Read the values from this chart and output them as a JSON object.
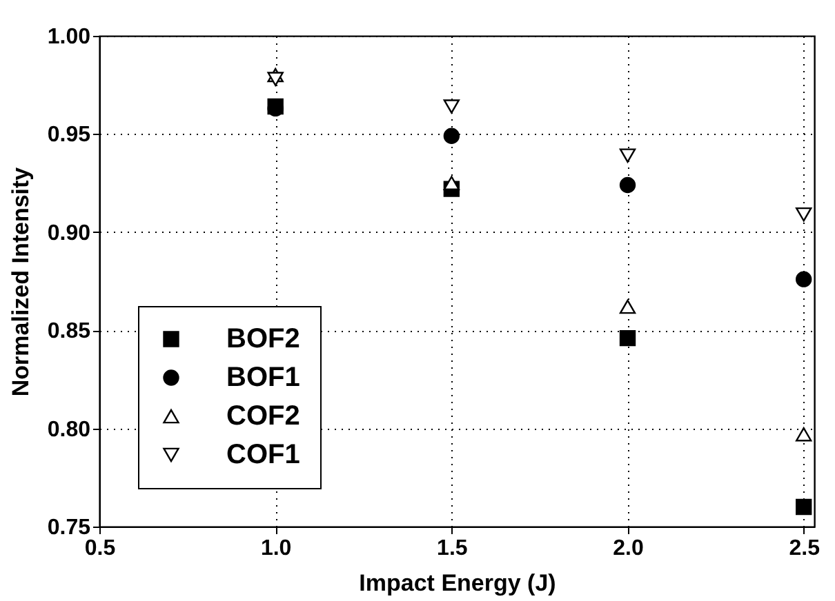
{
  "chart_data": {
    "type": "scatter",
    "xlabel": "Impact Energy (J)",
    "ylabel": "Normalized Intensity",
    "x": [
      1.0,
      1.5,
      2.0,
      2.5
    ],
    "series": [
      {
        "name": "BOF2",
        "color": "#000000",
        "marker": "square",
        "values": [
          0.964,
          0.922,
          0.846,
          0.76
        ]
      },
      {
        "name": "BOF1",
        "color": "#000000",
        "marker": "circle",
        "values": [
          0.963,
          0.949,
          0.924,
          0.876
        ]
      },
      {
        "name": "COF2",
        "color": "#000000",
        "marker": "triangle",
        "values": [
          0.98,
          0.925,
          0.862,
          0.797
        ]
      },
      {
        "name": "COF1",
        "color": "#000000",
        "marker": "triangle-down",
        "values": [
          0.978,
          0.964,
          0.939,
          0.909
        ]
      }
    ],
    "xlim": [
      0.5,
      2.53
    ],
    "xticks": [
      {
        "value": 0.5,
        "label": "0.5"
      },
      {
        "value": 1.0,
        "label": "1.0"
      },
      {
        "value": 1.5,
        "label": "1.5"
      },
      {
        "value": 2.0,
        "label": "2.0"
      },
      {
        "value": 2.5,
        "label": "2.5"
      }
    ],
    "ylim": [
      0.75,
      1.0
    ],
    "yticks": [
      {
        "value": 0.75,
        "label": "0.75"
      },
      {
        "value": 0.8,
        "label": "0.80"
      },
      {
        "value": 0.85,
        "label": "0.85"
      },
      {
        "value": 0.9,
        "label": "0.90"
      },
      {
        "value": 0.95,
        "label": "0.95"
      },
      {
        "value": 1.0,
        "label": "1.00"
      }
    ],
    "grid": true,
    "legend": "bottom left"
  }
}
